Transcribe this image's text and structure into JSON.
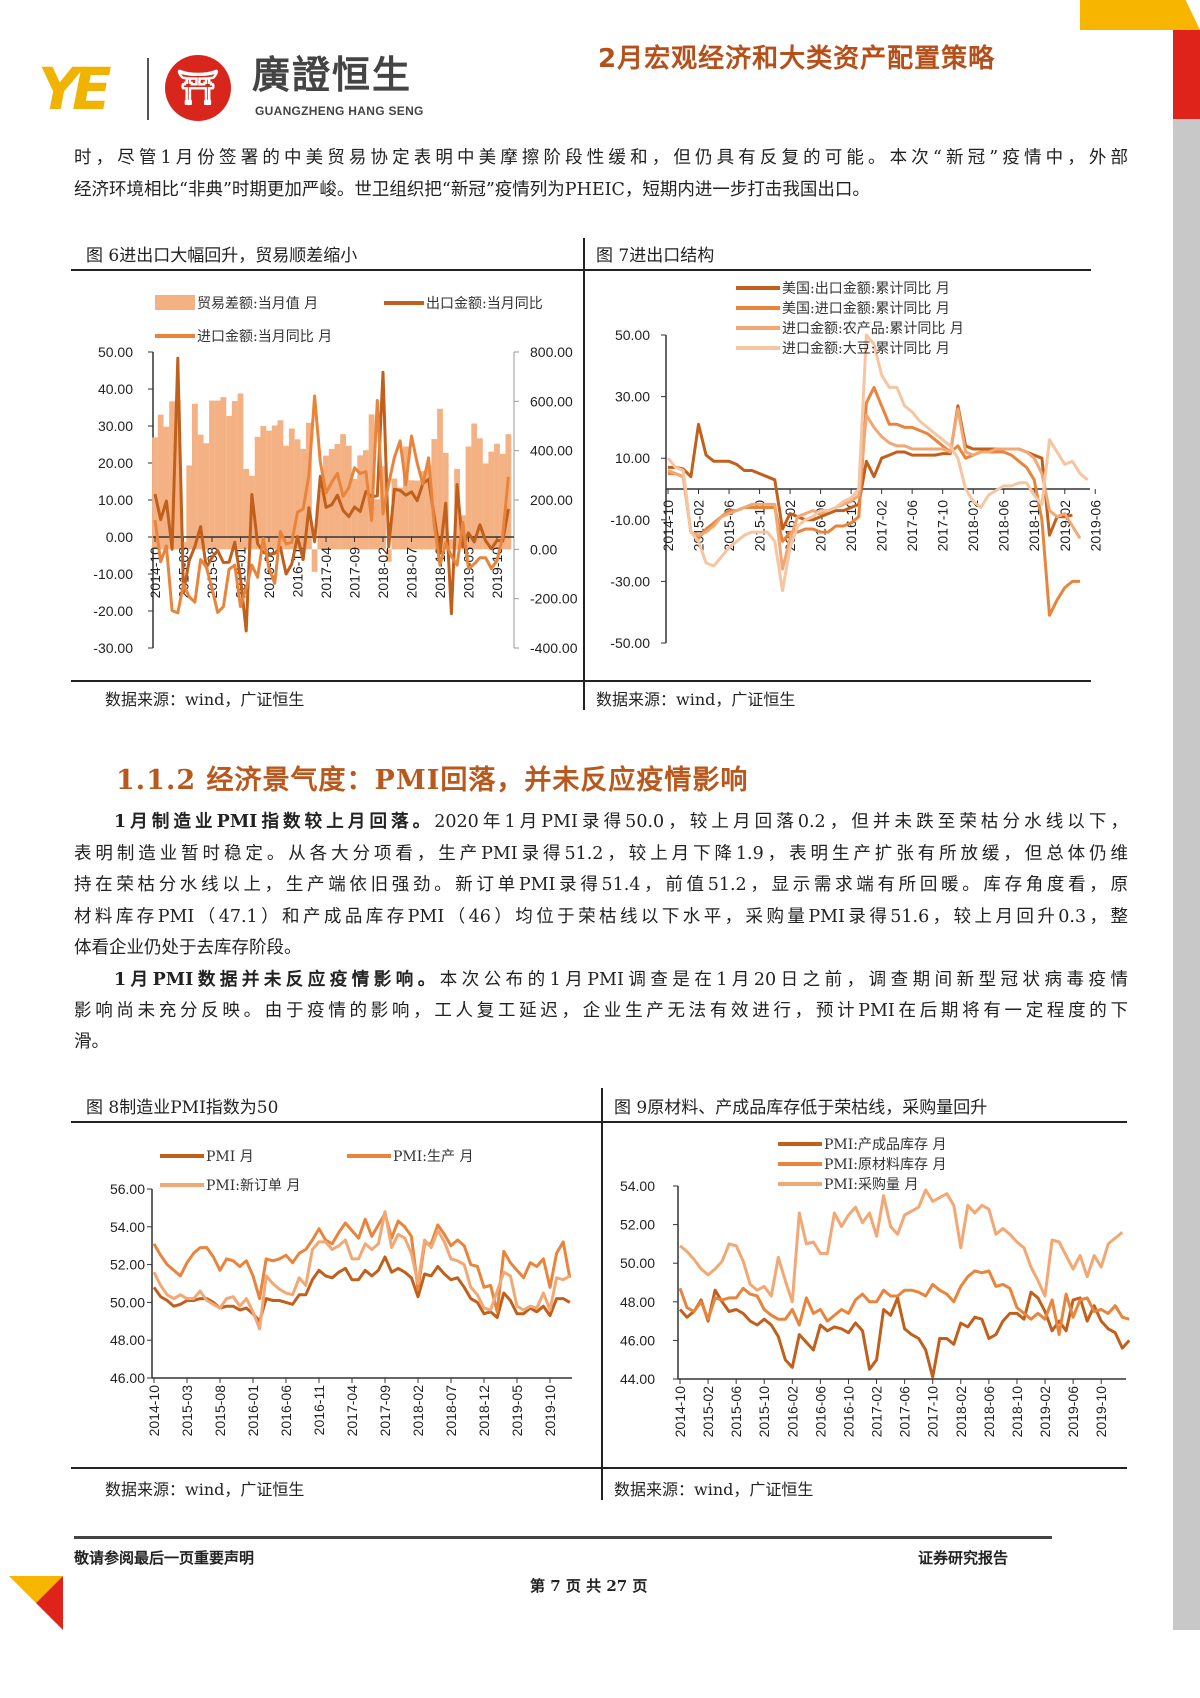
{
  "header": {
    "logo_text_cn": "廣證恒生",
    "logo_text_en": "GUANGZHENG HANG SENG",
    "doc_title": "2月宏观经济和大类资产配置策略"
  },
  "intro_lines": [
    "时，尽管1月份签署的中美贸易协定表明中美摩擦阶段性缓和，但仍具有反复的可能。本次“新冠”疫情中，外部",
    "经济环境相比“非典”时期更加严峻。世卫组织把“新冠”疫情列为PHEIC，短期内进一步打击我国出口。"
  ],
  "section": {
    "heading": "1.1.2 经济景气度：PMI回落，并未反应疫情影响"
  },
  "para1": {
    "lead": "1月制造业PMI指数较上月回落。",
    "lines": [
      "2020年1月PMI录得50.0，较上月回落0.2，但并未跌至荣枯分水线以下，",
      "表明制造业暂时稳定。从各大分项看，生产PMI录得51.2，较上月下降1.9，表明生产扩张有所放缓，但总体仍维",
      "持在荣枯分水线以上，生产端依旧强劲。新订单PMI录得51.4，前值51.2，显示需求端有所回暖。库存角度看，原",
      "材料库存PMI（47.1）和产成品库存PMI（46）均位于荣枯线以下水平，采购量PMI录得51.6，较上月回升0.3，整",
      "体看企业仍处于去库存阶段。"
    ]
  },
  "para2": {
    "lead": "1月PMI数据并未反应疫情影响。",
    "lines": [
      "本次公布的1月PMI调查是在1月20日之前，调查期间新型冠状病毒疫情",
      "影响尚未充分反映。由于疫情的影响，工人复工延迟，企业生产无法有效进行，预计PMI在后期将有一定程度的下",
      "滑。"
    ]
  },
  "colors": {
    "dark": "#c0601c",
    "mid": "#e8843c",
    "light": "#f2a874",
    "lightest": "#f6c5a2",
    "bar": "#f4b183",
    "accent": "#b8581c"
  },
  "chart_data": [
    {
      "id": "fig6",
      "type": "bar+line",
      "title": "图 6进出口大幅回升，贸易顺差缩小",
      "source": "数据来源：wind，广证恒生",
      "ylim_left": [
        -30,
        50
      ],
      "yticks_left": [
        "50.00",
        "40.00",
        "30.00",
        "20.00",
        "10.00",
        "0.00",
        "-10.00",
        "-20.00",
        "-30.00"
      ],
      "ylim_right": [
        -400,
        800
      ],
      "yticks_right": [
        "800.00",
        "600.00",
        "400.00",
        "200.00",
        "0.00",
        "-200.00",
        "-400.00"
      ],
      "x_start": "2014-10",
      "xticks": [
        "2014-10",
        "2015-03",
        "2015-08",
        "2016-01",
        "2016-06",
        "2016-11",
        "2017-04",
        "2017-09",
        "2018-02",
        "2018-07",
        "2018-12",
        "2019-05",
        "2019-10"
      ],
      "series": [
        {
          "name": "贸易差额:当月值 月",
          "kind": "bar",
          "axis": "right",
          "color": "#f4b183",
          "values": [
            454,
            546,
            497,
            600,
            606,
            30,
            340,
            590,
            465,
            430,
            603,
            603,
            617,
            541,
            601,
            632,
            326,
            298,
            456,
            500,
            481,
            502,
            523,
            420,
            490,
            446,
            407,
            513,
            -91,
            240,
            380,
            407,
            427,
            467,
            420,
            285,
            381,
            402,
            547,
            203,
            337,
            -50,
            287,
            250,
            417,
            280,
            279,
            317,
            340,
            447,
            570,
            391,
            41,
            326,
            138,
            417,
            510,
            450,
            348,
            396,
            428,
            387,
            467
          ]
        },
        {
          "name": "出口金额:当月同比",
          "kind": "line",
          "axis": "left",
          "color": "#c0601c",
          "values": [
            11.6,
            4.7,
            9.7,
            -3.3,
            48.3,
            -15.0,
            -6.4,
            -2.5,
            2.8,
            -8.3,
            -5.5,
            -3.7,
            -6.9,
            -6.8,
            -1.4,
            -11.2,
            -25.4,
            11.5,
            -1.8,
            -4.1,
            -4.8,
            -4.4,
            -2.8,
            -10.0,
            -7.3,
            0.1,
            -6.1,
            7.9,
            -1.3,
            16.4,
            8.0,
            8.7,
            11.3,
            7.2,
            5.5,
            8.1,
            6.9,
            12.3,
            10.9,
            11.1,
            44.5,
            -2.7,
            12.9,
            12.6,
            11.3,
            12.2,
            9.8,
            14.5,
            15.6,
            5.4,
            -4.4,
            9.1,
            -20.7,
            14.2,
            -2.7,
            1.1,
            -1.3,
            3.3,
            -1.0,
            -3.2,
            -0.9,
            -1.1,
            7.6
          ]
        },
        {
          "name": "进口金额:当月同比 月",
          "kind": "line",
          "axis": "left",
          "color": "#e8843c",
          "values": [
            4.6,
            -6.7,
            -2.4,
            -19.9,
            -20.5,
            -12.7,
            -16.2,
            -17.6,
            -6.1,
            -8.1,
            -13.8,
            -20.4,
            -18.8,
            -8.7,
            -7.6,
            -18.8,
            -13.8,
            -7.6,
            -10.9,
            -0.4,
            -8.4,
            -12.5,
            1.5,
            -1.9,
            -1.4,
            6.7,
            7.6,
            16.7,
            38.1,
            20.3,
            11.9,
            14.8,
            17.2,
            11.0,
            13.3,
            18.7,
            17.2,
            17.7,
            4.5,
            36.9,
            6.3,
            14.4,
            21.5,
            26.0,
            14.1,
            27.3,
            20.0,
            14.3,
            21.4,
            3.0,
            -7.6,
            -1.5,
            -5.2,
            -7.6,
            4.0,
            -8.5,
            -7.3,
            -5.6,
            -5.6,
            -8.5,
            -6.4,
            0.3,
            16.3
          ]
        }
      ]
    },
    {
      "id": "fig7",
      "type": "line",
      "title": "图 7进出口结构",
      "source": "数据来源：wind，广证恒生",
      "ylim": [
        -50,
        50
      ],
      "yticks": [
        "50.00",
        "30.00",
        "10.00",
        "-10.00",
        "-30.00",
        "-50.00"
      ],
      "x_start": "2014-10",
      "xticks": [
        "2014-10",
        "2015-02",
        "2015-06",
        "2015-10",
        "2016-02",
        "2016-06",
        "2016-10",
        "2017-02",
        "2017-06",
        "2017-10",
        "2018-02",
        "2018-06",
        "2018-10",
        "2019-02",
        "2019-06"
      ],
      "series": [
        {
          "name": "美国:出口金额:累计同比 月",
          "color": "#c0601c",
          "values": [
            7,
            7,
            6.5,
            4,
            21,
            11,
            9,
            9,
            9,
            8,
            6,
            6,
            5,
            4,
            3,
            -13,
            -8,
            -9,
            -10,
            -10,
            -9,
            -8,
            -7,
            -7,
            -6,
            -5,
            9,
            4,
            10,
            11,
            12,
            12,
            11,
            11,
            11,
            11,
            11.5,
            11.5,
            27,
            14,
            13,
            13,
            13,
            13,
            13,
            13,
            13,
            12,
            11,
            10,
            -15,
            -9,
            -9,
            -8.5
          ]
        },
        {
          "name": "美国:进口金额:累计同比 月",
          "color": "#e8843c",
          "values": [
            5,
            5,
            4,
            -14,
            -16,
            -13,
            -11,
            -9,
            -7,
            -7,
            -6,
            -6,
            -6,
            -6,
            -6,
            -17,
            -14,
            -14,
            -13,
            -13,
            -14,
            -14,
            -12,
            -12,
            -11,
            -9,
            28,
            33,
            27,
            21,
            21,
            20,
            20,
            19,
            18,
            16,
            14,
            12,
            14,
            10,
            11,
            12,
            12,
            12,
            12,
            11,
            9,
            7,
            3,
            -10,
            -41,
            -36,
            -32,
            -30,
            -30
          ]
        },
        {
          "name": "进口金额:农产品:累计同比 月",
          "color": "#f2a874",
          "values": [
            6,
            5,
            4,
            -14,
            -15,
            -14,
            -12,
            -9,
            -8,
            -7,
            -6,
            -5,
            -5,
            -5,
            -5,
            -26,
            -16,
            -9,
            -8,
            -7,
            -8,
            -7,
            -6,
            -5,
            -4,
            -2,
            24,
            20,
            17,
            15,
            14,
            14,
            13,
            13,
            13,
            13,
            13,
            12,
            26,
            12,
            11,
            12,
            12,
            13,
            13,
            13,
            13,
            12,
            10,
            5,
            -7,
            -9,
            -8,
            -12,
            -16
          ]
        },
        {
          "name": "进口金额:大豆:累计同比 月",
          "color": "#f6c5a2",
          "values": [
            10,
            7,
            6,
            -14,
            -17,
            -24,
            -25,
            -22,
            -19,
            -17,
            -15,
            -14,
            -14,
            -14,
            -17,
            -33,
            -19,
            -12,
            -10,
            -9,
            -7,
            -7,
            -6,
            -4,
            -3,
            0,
            50,
            47,
            37,
            33,
            33,
            27,
            25,
            22,
            20,
            18,
            16,
            14,
            10,
            0,
            -4,
            -6,
            -2,
            -0.5,
            1,
            1,
            2,
            2,
            -2,
            -5,
            16,
            12,
            8,
            9,
            5,
            3
          ]
        }
      ]
    },
    {
      "id": "fig8",
      "type": "line",
      "title": "图 8制造业PMI指数为50",
      "source": "数据来源：wind，广证恒生",
      "ylim": [
        46,
        56
      ],
      "yticks": [
        "56.00",
        "54.00",
        "52.00",
        "50.00",
        "48.00",
        "46.00"
      ],
      "x_start": "2014-10",
      "xticks": [
        "2014-10",
        "2015-03",
        "2015-08",
        "2016-01",
        "2016-06",
        "2016-11",
        "2017-04",
        "2017-09",
        "2018-02",
        "2018-07",
        "2018-12",
        "2019-05",
        "2019-10"
      ],
      "series": [
        {
          "name": "PMI 月",
          "color": "#c0601c",
          "values": [
            50.8,
            50.3,
            50.1,
            49.8,
            49.9,
            50.1,
            50.1,
            50.2,
            50.2,
            50.0,
            49.7,
            49.8,
            49.8,
            49.6,
            49.7,
            49.4,
            49.0,
            50.2,
            50.1,
            50.1,
            50.0,
            49.9,
            50.4,
            50.4,
            51.2,
            51.7,
            51.4,
            51.3,
            51.6,
            51.8,
            51.2,
            51.2,
            51.7,
            51.4,
            51.7,
            52.4,
            51.6,
            51.8,
            51.6,
            51.3,
            50.3,
            51.5,
            51.4,
            51.9,
            51.5,
            51.2,
            51.3,
            50.8,
            50.2,
            50.0,
            49.4,
            49.5,
            49.2,
            50.5,
            50.1,
            49.4,
            49.4,
            49.7,
            49.5,
            49.8,
            49.3,
            50.2,
            50.2,
            50.0
          ]
        },
        {
          "name": "PMI:生产 月",
          "color": "#e8843c",
          "values": [
            53.1,
            52.5,
            52.0,
            51.7,
            51.4,
            52.1,
            52.6,
            52.9,
            52.9,
            52.4,
            51.7,
            52.3,
            52.2,
            51.9,
            52.2,
            51.4,
            50.2,
            52.3,
            52.2,
            52.3,
            52.5,
            52.1,
            52.6,
            52.8,
            53.3,
            53.9,
            53.3,
            53.1,
            53.7,
            54.2,
            53.8,
            53.4,
            54.4,
            53.5,
            54.1,
            54.7,
            53.4,
            54.3,
            54.0,
            53.5,
            50.7,
            53.1,
            53.1,
            54.1,
            53.6,
            53.0,
            53.3,
            53.0,
            52.0,
            51.9,
            50.8,
            50.9,
            49.5,
            52.7,
            52.1,
            51.7,
            51.3,
            52.1,
            51.9,
            52.3,
            50.8,
            52.6,
            53.2,
            51.3
          ]
        },
        {
          "name": "PMI:新订单 月",
          "color": "#f2a874",
          "values": [
            51.6,
            50.9,
            50.4,
            50.2,
            50.4,
            50.2,
            50.2,
            50.6,
            50.1,
            49.9,
            49.7,
            50.2,
            50.3,
            49.8,
            50.2,
            49.5,
            48.6,
            51.4,
            51.0,
            50.7,
            50.5,
            50.4,
            51.3,
            50.9,
            52.8,
            53.2,
            53.2,
            52.8,
            53.0,
            53.3,
            52.3,
            52.3,
            53.1,
            52.8,
            53.1,
            54.8,
            52.9,
            53.6,
            53.4,
            52.6,
            51.0,
            53.3,
            52.9,
            53.8,
            53.2,
            52.3,
            52.2,
            52.0,
            50.8,
            50.4,
            49.7,
            49.6,
            50.6,
            51.6,
            51.4,
            49.8,
            49.6,
            49.8,
            49.7,
            50.5,
            49.6,
            51.3,
            51.2,
            51.4
          ]
        }
      ]
    },
    {
      "id": "fig9",
      "type": "line",
      "title": "图 9原材料、产成品库存低于荣枯线，采购量回升",
      "source": "数据来源：wind，广证恒生",
      "ylim": [
        44,
        54
      ],
      "yticks": [
        "54.00",
        "52.00",
        "50.00",
        "48.00",
        "46.00",
        "44.00"
      ],
      "x_start": "2014-10",
      "xticks": [
        "2014-10",
        "2015-02",
        "2015-06",
        "2015-10",
        "2016-02",
        "2016-06",
        "2016-10",
        "2017-02",
        "2017-06",
        "2017-10",
        "2018-02",
        "2018-06",
        "2018-10",
        "2019-02",
        "2019-06",
        "2019-10"
      ],
      "series": [
        {
          "name": "PMI:产成品库存 月",
          "color": "#c0601c",
          "values": [
            47.6,
            47.2,
            47.5,
            48.1,
            47.0,
            48.6,
            48.0,
            47.5,
            47.6,
            47.4,
            47.0,
            46.8,
            47.1,
            46.8,
            46.2,
            45.0,
            44.6,
            46.3,
            45.9,
            45.5,
            46.8,
            46.5,
            46.7,
            46.6,
            46.4,
            46.9,
            46.5,
            44.5,
            45.0,
            47.6,
            47.3,
            48.2,
            46.6,
            46.3,
            46.1,
            45.5,
            44.1,
            46.1,
            46.1,
            45.8,
            46.9,
            46.7,
            47.2,
            47.1,
            46.1,
            46.3,
            47.0,
            47.4,
            47.4,
            47.1,
            48.5,
            48.2,
            47.5,
            46.5,
            47.0,
            46.5,
            48.1,
            48.2,
            47.0,
            47.8,
            47.0,
            46.6,
            46.4,
            45.6,
            46.0
          ]
        },
        {
          "name": "PMI:原材料库存 月",
          "color": "#e8843c",
          "values": [
            48.7,
            47.7,
            47.5,
            48.0,
            47.1,
            48.2,
            48.1,
            48.2,
            48.2,
            48.7,
            48.4,
            48.3,
            47.6,
            47.3,
            47.1,
            47.1,
            47.6,
            46.8,
            48.2,
            47.4,
            47.6,
            47.0,
            47.3,
            47.6,
            47.4,
            48.1,
            48.4,
            48.0,
            48.0,
            48.6,
            48.3,
            48.3,
            48.6,
            48.6,
            48.5,
            48.3,
            48.9,
            48.6,
            48.4,
            48.0,
            48.8,
            49.3,
            49.6,
            49.5,
            49.6,
            48.8,
            48.9,
            48.7,
            47.7,
            47.4,
            47.1,
            47.4,
            47.1,
            48.1,
            46.3,
            48.4,
            47.2,
            48.1,
            48.2,
            47.5,
            47.6,
            47.4,
            47.8,
            47.2,
            47.1
          ]
        },
        {
          "name": "PMI:采购量 月",
          "color": "#f2a874",
          "values": [
            50.9,
            50.6,
            50.2,
            49.7,
            49.4,
            49.7,
            50.1,
            51.0,
            50.9,
            50.1,
            48.9,
            48.6,
            48.8,
            48.3,
            50.3,
            49.1,
            48.0,
            52.6,
            51.0,
            51.1,
            50.5,
            50.5,
            52.6,
            51.9,
            52.5,
            52.9,
            52.1,
            52.6,
            51.4,
            53.5,
            51.9,
            51.5,
            52.5,
            52.7,
            52.9,
            53.8,
            53.2,
            53.4,
            53.6,
            53.0,
            50.8,
            53.0,
            52.6,
            53.0,
            52.8,
            51.5,
            51.8,
            51.5,
            51.1,
            50.8,
            49.8,
            49.1,
            48.3,
            51.2,
            51.1,
            50.4,
            49.7,
            50.4,
            49.3,
            50.4,
            49.8,
            51.0,
            51.3,
            51.6
          ]
        }
      ]
    }
  ],
  "footer": {
    "disclaimer": "敬请参阅最后一页重要声明",
    "report_type": "证券研究报告",
    "page": "第 7 页 共 27 页"
  }
}
